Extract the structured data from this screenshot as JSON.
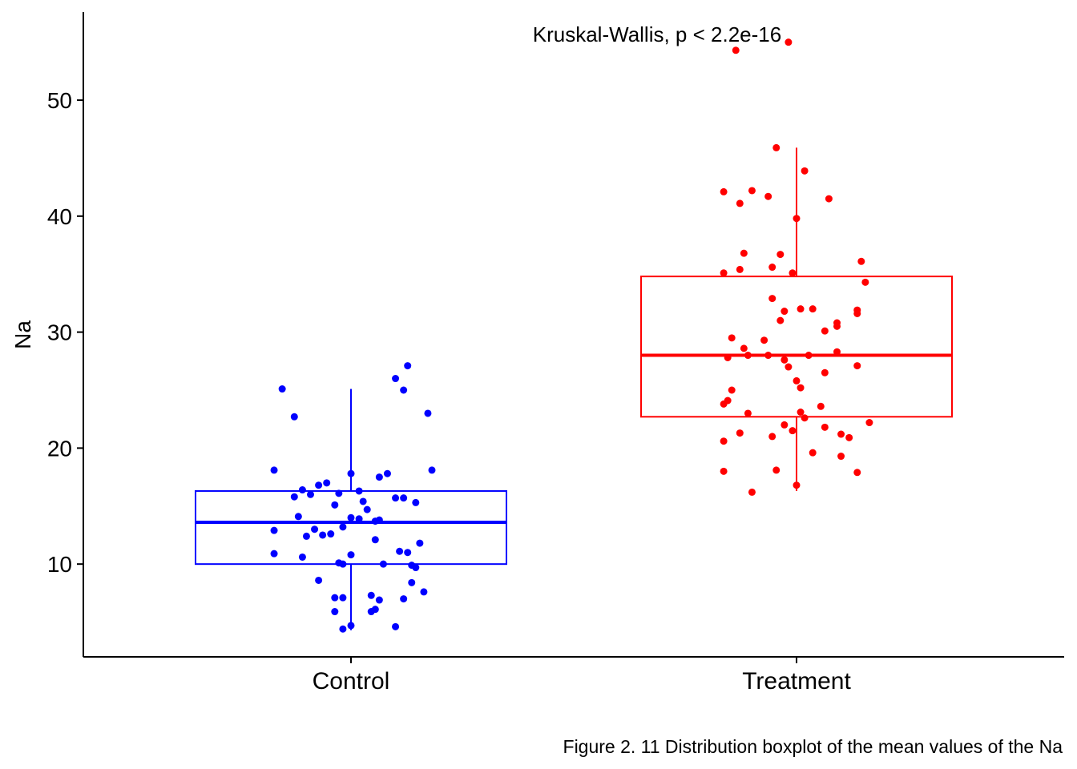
{
  "chart_data": {
    "type": "boxplot",
    "ylabel": "Na",
    "xlabel": "",
    "ylim": [
      2,
      57.6
    ],
    "y_ticks": [
      10,
      20,
      30,
      40,
      50
    ],
    "categories": [
      "Control",
      "Treatment"
    ],
    "annotation": "Kruskal-Wallis, p < 2.2e-16",
    "caption": "Figure 2. 11 Distribution boxplot of the mean values of the Na",
    "legend": "none",
    "grid": false,
    "series": [
      {
        "category": "Control",
        "color": "#0000ff",
        "box": {
          "lower_whisker": 4.3,
          "q1": 10.0,
          "median": 13.6,
          "q3": 16.3,
          "upper_whisker": 25.1
        },
        "points": [
          [
            -0.17,
            25.1
          ],
          [
            -0.14,
            22.7
          ],
          [
            0.11,
            26.0
          ],
          [
            0.14,
            27.1
          ],
          [
            0.13,
            25.0
          ],
          [
            0.19,
            23.0
          ],
          [
            -0.19,
            18.1
          ],
          [
            0.2,
            18.1
          ],
          [
            0.0,
            17.8
          ],
          [
            0.09,
            17.8
          ],
          [
            0.07,
            17.5
          ],
          [
            -0.06,
            17.0
          ],
          [
            -0.08,
            16.8
          ],
          [
            -0.12,
            16.4
          ],
          [
            -0.1,
            16.0
          ],
          [
            -0.03,
            16.1
          ],
          [
            0.02,
            16.3
          ],
          [
            -0.14,
            15.8
          ],
          [
            0.11,
            15.7
          ],
          [
            0.13,
            15.7
          ],
          [
            0.16,
            15.3
          ],
          [
            -0.04,
            15.1
          ],
          [
            0.03,
            15.4
          ],
          [
            0.04,
            14.7
          ],
          [
            -0.13,
            14.1
          ],
          [
            0.0,
            14.0
          ],
          [
            0.02,
            13.9
          ],
          [
            0.06,
            13.7
          ],
          [
            0.07,
            13.8
          ],
          [
            -0.19,
            12.9
          ],
          [
            -0.09,
            13.0
          ],
          [
            -0.02,
            13.2
          ],
          [
            -0.07,
            12.5
          ],
          [
            -0.11,
            12.4
          ],
          [
            -0.05,
            12.6
          ],
          [
            0.06,
            12.1
          ],
          [
            0.17,
            11.8
          ],
          [
            -0.19,
            10.9
          ],
          [
            -0.12,
            10.6
          ],
          [
            0.0,
            10.8
          ],
          [
            0.12,
            11.1
          ],
          [
            0.14,
            11.0
          ],
          [
            -0.03,
            10.1
          ],
          [
            -0.02,
            10.0
          ],
          [
            0.08,
            10.0
          ],
          [
            0.15,
            9.9
          ],
          [
            0.16,
            9.7
          ],
          [
            -0.08,
            8.6
          ],
          [
            0.15,
            8.4
          ],
          [
            0.18,
            7.6
          ],
          [
            -0.04,
            7.1
          ],
          [
            -0.02,
            7.1
          ],
          [
            0.05,
            7.3
          ],
          [
            0.13,
            7.0
          ],
          [
            0.07,
            6.9
          ],
          [
            0.06,
            6.1
          ],
          [
            0.05,
            5.9
          ],
          [
            -0.04,
            5.9
          ],
          [
            0.0,
            4.7
          ],
          [
            -0.02,
            4.4
          ],
          [
            0.11,
            4.6
          ]
        ]
      },
      {
        "category": "Treatment",
        "color": "#ff0000",
        "box": {
          "lower_whisker": 16.3,
          "q1": 22.7,
          "median": 28.0,
          "q3": 34.8,
          "upper_whisker": 45.9
        },
        "points": [
          [
            -0.15,
            54.3
          ],
          [
            -0.02,
            55.0
          ],
          [
            -0.05,
            45.9
          ],
          [
            0.02,
            43.9
          ],
          [
            -0.18,
            42.1
          ],
          [
            -0.11,
            42.2
          ],
          [
            -0.14,
            41.1
          ],
          [
            -0.07,
            41.7
          ],
          [
            0.08,
            41.5
          ],
          [
            0.0,
            39.8
          ],
          [
            0.16,
            36.1
          ],
          [
            -0.13,
            36.8
          ],
          [
            -0.04,
            36.7
          ],
          [
            -0.06,
            35.6
          ],
          [
            -0.01,
            35.1
          ],
          [
            -0.18,
            35.1
          ],
          [
            -0.14,
            35.4
          ],
          [
            0.17,
            34.3
          ],
          [
            -0.06,
            32.9
          ],
          [
            -0.03,
            31.8
          ],
          [
            -0.04,
            31.0
          ],
          [
            0.01,
            32.0
          ],
          [
            0.04,
            32.0
          ],
          [
            0.15,
            31.9
          ],
          [
            0.15,
            31.6
          ],
          [
            0.1,
            30.8
          ],
          [
            0.1,
            30.5
          ],
          [
            0.07,
            30.1
          ],
          [
            -0.16,
            29.5
          ],
          [
            -0.08,
            29.3
          ],
          [
            -0.13,
            28.6
          ],
          [
            -0.17,
            27.8
          ],
          [
            -0.12,
            28.0
          ],
          [
            -0.07,
            28.0
          ],
          [
            0.03,
            28.0
          ],
          [
            -0.03,
            27.6
          ],
          [
            -0.02,
            27.0
          ],
          [
            0.1,
            28.3
          ],
          [
            0.15,
            27.1
          ],
          [
            0.07,
            26.5
          ],
          [
            0.0,
            25.8
          ],
          [
            0.01,
            25.2
          ],
          [
            -0.16,
            25.0
          ],
          [
            -0.17,
            24.1
          ],
          [
            -0.18,
            23.8
          ],
          [
            0.06,
            23.6
          ],
          [
            -0.12,
            23.0
          ],
          [
            0.01,
            23.1
          ],
          [
            0.02,
            22.6
          ],
          [
            0.18,
            22.2
          ],
          [
            -0.03,
            22.0
          ],
          [
            0.07,
            21.8
          ],
          [
            -0.01,
            21.5
          ],
          [
            -0.06,
            21.0
          ],
          [
            -0.14,
            21.3
          ],
          [
            0.11,
            21.2
          ],
          [
            0.13,
            20.9
          ],
          [
            -0.18,
            20.6
          ],
          [
            0.04,
            19.6
          ],
          [
            0.11,
            19.3
          ],
          [
            -0.18,
            18.0
          ],
          [
            -0.05,
            18.1
          ],
          [
            0.15,
            17.9
          ],
          [
            0.0,
            16.8
          ],
          [
            -0.11,
            16.2
          ]
        ]
      }
    ]
  }
}
